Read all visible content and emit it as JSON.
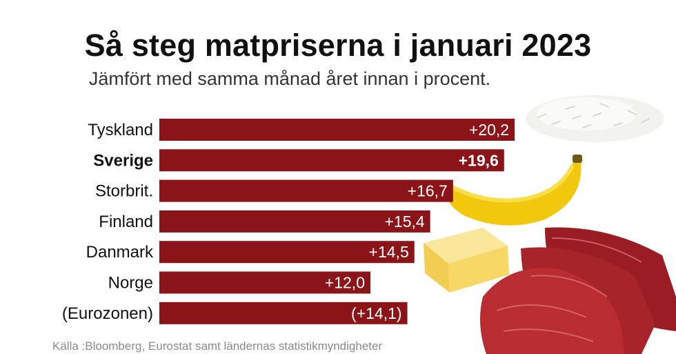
{
  "title": "Så steg matpriserna i januari 2023",
  "subtitle": "Jämfört med samma månad året innan i procent.",
  "source": "Källa :Bloomberg, Eurostat samt ländernas statistikmyndigheter",
  "colors": {
    "bar": "#8b1419",
    "bar_text": "#ffffff"
  },
  "icons": [
    "rice-image",
    "banana-image",
    "butter-image",
    "beef-image"
  ],
  "chart_data": {
    "type": "bar",
    "orientation": "horizontal",
    "categories": [
      "Tyskland",
      "Sverige",
      "Storbrit.",
      "Finland",
      "Danmark",
      "Norge",
      "(Eurozonen)"
    ],
    "values": [
      20.2,
      19.6,
      16.7,
      15.4,
      14.5,
      12.0,
      14.1
    ],
    "labels": [
      "+20,2",
      "+19,6",
      "+16,7",
      "+15,4",
      "+14,5",
      "+12,0",
      "(+14,1)"
    ],
    "highlight": "Sverige",
    "title": "Så steg matpriserna i januari 2023",
    "xlabel": "",
    "ylabel": "",
    "grid": false
  }
}
